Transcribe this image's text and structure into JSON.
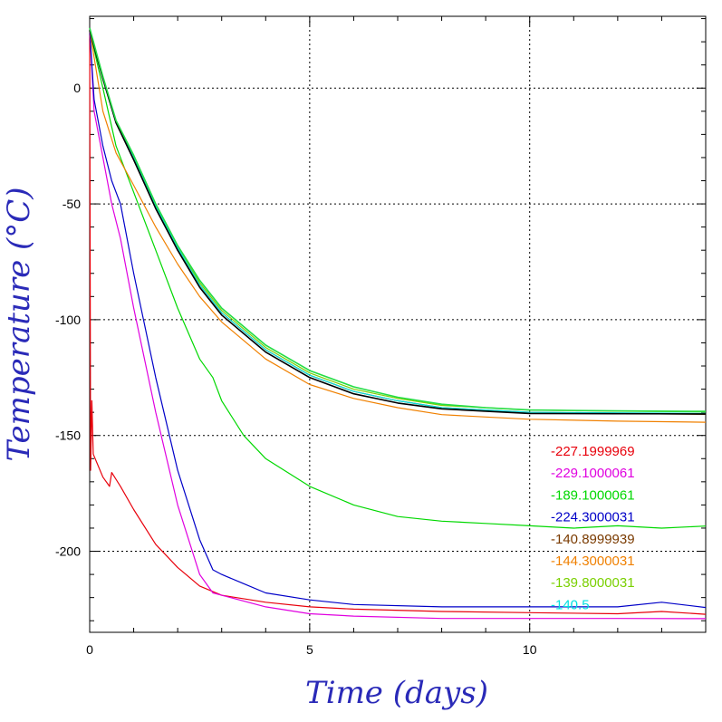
{
  "chart_data": {
    "type": "line",
    "title": "",
    "xlabel": "Time  (days)",
    "ylabel": "Temperature  (°C)",
    "xlim": [
      0,
      14
    ],
    "ylim": [
      -235,
      31
    ],
    "x_ticks": [
      0,
      5,
      10
    ],
    "y_ticks": [
      0,
      -50,
      -100,
      -150,
      -200
    ],
    "grid": true,
    "legend_position": "bottom-right",
    "series": [
      {
        "name": "-227.1999969",
        "color": "#e8000b",
        "points": [
          [
            0,
            25
          ],
          [
            0.02,
            -165
          ],
          [
            0.05,
            -135
          ],
          [
            0.08,
            -158
          ],
          [
            0.3,
            -168
          ],
          [
            0.45,
            -172
          ],
          [
            0.5,
            -166
          ],
          [
            0.7,
            -172
          ],
          [
            1.0,
            -182
          ],
          [
            1.5,
            -197
          ],
          [
            2.0,
            -207
          ],
          [
            2.5,
            -215
          ],
          [
            3.0,
            -219
          ],
          [
            4.0,
            -222
          ],
          [
            5.0,
            -224
          ],
          [
            6.0,
            -225
          ],
          [
            8.0,
            -226
          ],
          [
            10.0,
            -226.5
          ],
          [
            12.0,
            -227
          ],
          [
            13.0,
            -226
          ],
          [
            14.0,
            -227.2
          ]
        ]
      },
      {
        "name": "-229.1000061",
        "color": "#e000e0",
        "points": [
          [
            0,
            25
          ],
          [
            0.1,
            -10
          ],
          [
            0.3,
            -30
          ],
          [
            0.5,
            -50
          ],
          [
            0.7,
            -65
          ],
          [
            1.0,
            -95
          ],
          [
            1.5,
            -140
          ],
          [
            2.0,
            -180
          ],
          [
            2.5,
            -210
          ],
          [
            2.8,
            -218
          ],
          [
            3.0,
            -219
          ],
          [
            4.0,
            -224
          ],
          [
            5.0,
            -227
          ],
          [
            6.0,
            -228
          ],
          [
            8.0,
            -229
          ],
          [
            10.0,
            -229
          ],
          [
            12.0,
            -229
          ],
          [
            14.0,
            -229.1
          ]
        ]
      },
      {
        "name": "-189.1000061",
        "color": "#00d800",
        "points": [
          [
            0,
            25
          ],
          [
            0.3,
            0
          ],
          [
            0.6,
            -25
          ],
          [
            1.0,
            -45
          ],
          [
            1.5,
            -70
          ],
          [
            2.0,
            -95
          ],
          [
            2.5,
            -117
          ],
          [
            2.8,
            -125
          ],
          [
            3.0,
            -135
          ],
          [
            3.5,
            -150
          ],
          [
            4.0,
            -160
          ],
          [
            5.0,
            -172
          ],
          [
            6.0,
            -180
          ],
          [
            7.0,
            -185
          ],
          [
            8.0,
            -187
          ],
          [
            9.0,
            -188
          ],
          [
            10.0,
            -189
          ],
          [
            11.0,
            -190
          ],
          [
            12.0,
            -189
          ],
          [
            13.0,
            -190
          ],
          [
            14.0,
            -189.1
          ]
        ]
      },
      {
        "name": "-224.3000031",
        "color": "#0000c8",
        "points": [
          [
            0,
            25
          ],
          [
            0.1,
            -5
          ],
          [
            0.3,
            -25
          ],
          [
            0.5,
            -40
          ],
          [
            0.7,
            -50
          ],
          [
            1.0,
            -80
          ],
          [
            1.5,
            -125
          ],
          [
            2.0,
            -165
          ],
          [
            2.5,
            -195
          ],
          [
            2.8,
            -208
          ],
          [
            3.0,
            -210
          ],
          [
            3.5,
            -214
          ],
          [
            4.0,
            -218
          ],
          [
            5.0,
            -221
          ],
          [
            6.0,
            -223
          ],
          [
            8.0,
            -224
          ],
          [
            10.0,
            -224
          ],
          [
            12.0,
            -224
          ],
          [
            13.0,
            -222
          ],
          [
            14.0,
            -224.3
          ]
        ]
      },
      {
        "name": "-140.8999939",
        "color": "#7a3a00",
        "points": [
          [
            0,
            25
          ],
          [
            0.3,
            5
          ],
          [
            0.6,
            -15
          ],
          [
            1.0,
            -30
          ],
          [
            1.5,
            -52
          ],
          [
            2.0,
            -70
          ],
          [
            2.5,
            -85
          ],
          [
            3.0,
            -97
          ],
          [
            4.0,
            -113
          ],
          [
            5.0,
            -124
          ],
          [
            6.0,
            -131
          ],
          [
            7.0,
            -135
          ],
          [
            8.0,
            -138
          ],
          [
            9.0,
            -139
          ],
          [
            10.0,
            -140
          ],
          [
            12.0,
            -140.5
          ],
          [
            14.0,
            -140.9
          ]
        ]
      },
      {
        "name": "-144.3000031",
        "color": "#f08000",
        "points": [
          [
            0,
            25
          ],
          [
            0.3,
            -10
          ],
          [
            0.6,
            -28
          ],
          [
            1.0,
            -42
          ],
          [
            1.5,
            -60
          ],
          [
            2.0,
            -76
          ],
          [
            2.5,
            -90
          ],
          [
            3.0,
            -101
          ],
          [
            4.0,
            -117
          ],
          [
            5.0,
            -128
          ],
          [
            6.0,
            -134
          ],
          [
            7.0,
            -138
          ],
          [
            8.0,
            -141
          ],
          [
            9.0,
            -142
          ],
          [
            10.0,
            -143
          ],
          [
            12.0,
            -143.8
          ],
          [
            14.0,
            -144.3
          ]
        ]
      },
      {
        "name": "-139.8000031",
        "color": "#7ad000",
        "points": [
          [
            0,
            25
          ],
          [
            0.3,
            4
          ],
          [
            0.6,
            -15
          ],
          [
            1.0,
            -30
          ],
          [
            1.5,
            -51
          ],
          [
            2.0,
            -69
          ],
          [
            2.5,
            -84
          ],
          [
            3.0,
            -96
          ],
          [
            4.0,
            -112
          ],
          [
            5.0,
            -123
          ],
          [
            6.0,
            -130
          ],
          [
            7.0,
            -134
          ],
          [
            8.0,
            -137
          ],
          [
            9.0,
            -138
          ],
          [
            10.0,
            -139
          ],
          [
            12.0,
            -139.5
          ],
          [
            14.0,
            -139.8
          ]
        ]
      },
      {
        "name": "-140.5",
        "color": "#00e0e0",
        "points": [
          [
            0,
            25
          ],
          [
            0.3,
            4
          ],
          [
            0.6,
            -15
          ],
          [
            1.0,
            -30
          ],
          [
            1.5,
            -51
          ],
          [
            2.0,
            -69
          ],
          [
            2.5,
            -85
          ],
          [
            3.0,
            -97
          ],
          [
            4.0,
            -113
          ],
          [
            5.0,
            -124
          ],
          [
            6.0,
            -131
          ],
          [
            7.0,
            -135
          ],
          [
            8.0,
            -138
          ],
          [
            9.0,
            -139
          ],
          [
            10.0,
            -140
          ],
          [
            12.0,
            -140.2
          ],
          [
            14.0,
            -140.5
          ]
        ]
      },
      {
        "name": "",
        "color": "#000000",
        "points": [
          [
            0,
            25
          ],
          [
            0.3,
            4
          ],
          [
            0.6,
            -15
          ],
          [
            1.0,
            -31
          ],
          [
            1.5,
            -52
          ],
          [
            2.0,
            -70
          ],
          [
            2.5,
            -86
          ],
          [
            3.0,
            -98
          ],
          [
            4.0,
            -114
          ],
          [
            5.0,
            -125
          ],
          [
            6.0,
            -132
          ],
          [
            7.0,
            -136
          ],
          [
            8.0,
            -138.5
          ],
          [
            9.0,
            -139.5
          ],
          [
            10.0,
            -140.5
          ],
          [
            12.0,
            -140.6
          ],
          [
            14.0,
            -140.7
          ]
        ]
      },
      {
        "name": "",
        "color": "#22dd44",
        "points": [
          [
            0,
            26
          ],
          [
            0.3,
            5
          ],
          [
            0.6,
            -14
          ],
          [
            1.0,
            -29
          ],
          [
            1.5,
            -50
          ],
          [
            2.0,
            -68
          ],
          [
            2.5,
            -83
          ],
          [
            3.0,
            -95
          ],
          [
            4.0,
            -111
          ],
          [
            5.0,
            -122
          ],
          [
            6.0,
            -129
          ],
          [
            7.0,
            -133.5
          ],
          [
            8.0,
            -136.5
          ],
          [
            9.0,
            -138
          ],
          [
            10.0,
            -139
          ],
          [
            12.0,
            -139.4
          ],
          [
            14.0,
            -139.6
          ]
        ]
      }
    ]
  }
}
